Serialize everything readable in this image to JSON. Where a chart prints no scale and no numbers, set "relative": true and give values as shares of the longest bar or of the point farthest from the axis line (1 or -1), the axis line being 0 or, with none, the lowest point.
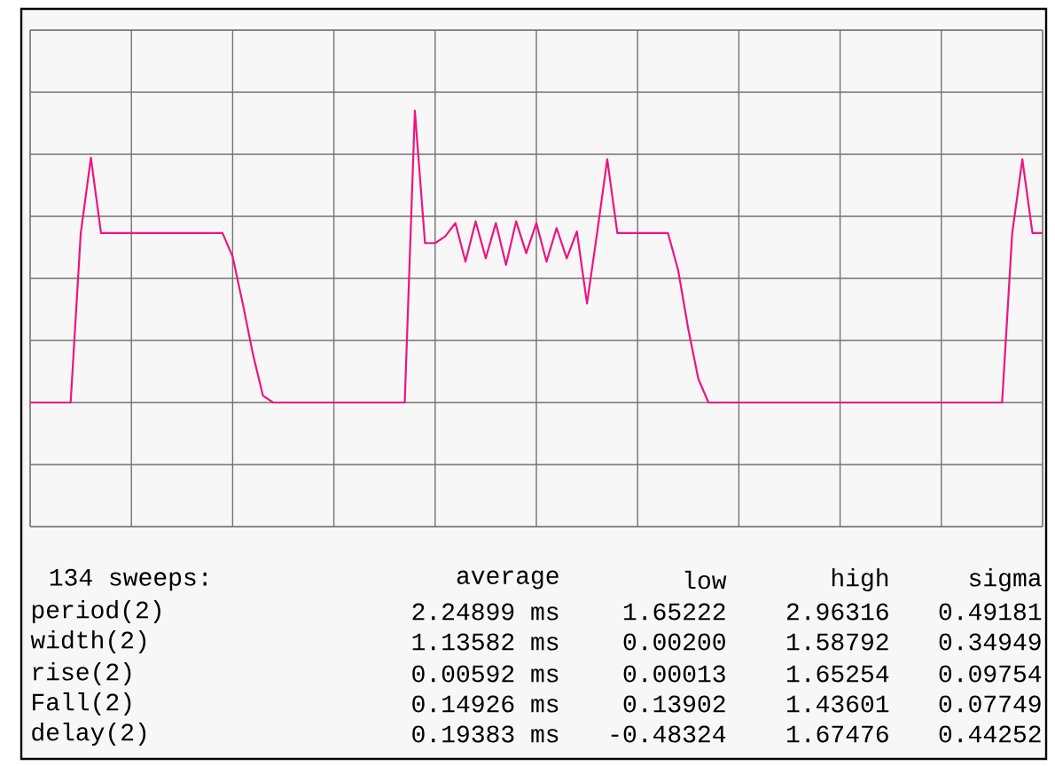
{
  "chart_data": {
    "type": "line",
    "relative": true,
    "color": "#ee1480",
    "grid": true,
    "tick_labels": false,
    "categories": [
      null,
      null,
      null,
      null,
      null,
      null,
      null,
      null,
      null,
      null,
      null,
      null,
      null,
      null,
      null,
      null,
      null,
      null,
      null,
      null,
      null,
      null,
      null,
      null,
      null,
      null,
      null,
      null,
      null,
      null,
      null,
      null,
      null,
      null,
      null,
      null,
      null,
      null,
      null,
      null,
      null,
      null,
      null,
      null,
      null,
      null,
      null,
      null,
      null,
      null,
      null,
      null,
      null,
      null,
      null,
      null,
      null,
      null,
      null,
      null,
      null,
      null,
      null,
      null,
      null,
      null,
      null,
      null,
      null,
      null,
      null,
      null,
      null,
      null,
      null,
      null,
      null,
      null,
      null,
      null,
      null,
      null,
      null,
      null,
      null,
      null,
      null,
      null,
      null,
      null,
      null,
      null,
      null,
      null,
      null,
      null,
      null,
      null,
      null,
      null,
      null
    ],
    "values": [
      -0.74,
      -0.74,
      -0.74,
      -0.74,
      -0.74,
      0.27,
      0.72,
      0.27,
      0.27,
      0.27,
      0.27,
      0.27,
      0.27,
      0.27,
      0.27,
      0.27,
      0.27,
      0.27,
      0.27,
      0.27,
      0.13,
      -0.15,
      -0.45,
      -0.7,
      -0.74,
      -0.74,
      -0.74,
      -0.74,
      -0.74,
      -0.74,
      -0.74,
      -0.74,
      -0.74,
      -0.74,
      -0.74,
      -0.74,
      -0.74,
      -0.74,
      1.0,
      0.21,
      0.21,
      0.25,
      0.33,
      0.1,
      0.34,
      0.12,
      0.33,
      0.08,
      0.34,
      0.15,
      0.33,
      0.1,
      0.3,
      0.12,
      0.28,
      -0.15,
      0.27,
      0.71,
      0.27,
      0.27,
      0.27,
      0.27,
      0.27,
      0.27,
      0.05,
      -0.3,
      -0.6,
      -0.74,
      -0.74,
      -0.74,
      -0.74,
      -0.74,
      -0.74,
      -0.74,
      -0.74,
      -0.74,
      -0.74,
      -0.74,
      -0.74,
      -0.74,
      -0.74,
      -0.74,
      -0.74,
      -0.74,
      -0.74,
      -0.74,
      -0.74,
      -0.74,
      -0.74,
      -0.74,
      -0.74,
      -0.74,
      -0.74,
      -0.74,
      -0.74,
      -0.74,
      -0.74,
      0.27,
      0.71,
      0.27,
      0.27
    ],
    "annotations": [
      "134 sweeps:",
      "average",
      "low",
      "high",
      "sigma",
      "period(2)",
      "2.24899 ms",
      "1.65222",
      "2.96316",
      "0.49181",
      "width(2)",
      "1.13582 ms",
      "0.00200",
      "1.58792",
      "0.34949",
      "rise(2)",
      "0.00592 ms",
      "0.00013",
      "1.65254",
      "0.09754",
      "Fall(2)",
      "0.14926 ms",
      "0.13902",
      "1.43601",
      "0.07749",
      "delay(2)",
      "0.19383 ms",
      "-0.48324",
      "1.67476",
      "0.44252"
    ]
  }
}
